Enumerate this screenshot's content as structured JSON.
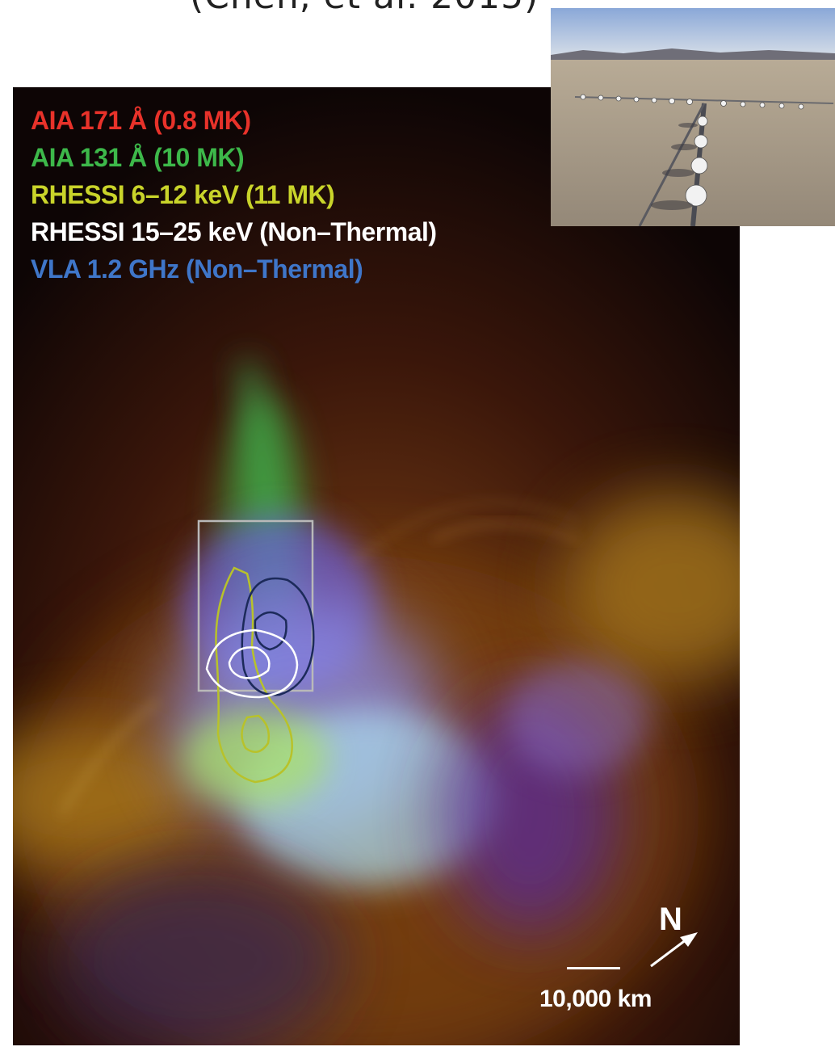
{
  "citation": "(Chen, et al. 2015)",
  "legend": [
    {
      "label": "AIA 171 Å (0.8 MK)",
      "color": "#e8322a"
    },
    {
      "label": "AIA 131 Å (10 MK)",
      "color": "#3db84a"
    },
    {
      "label": "RHESSI 6–12 keV (11 MK)",
      "color": "#c9d42a"
    },
    {
      "label": "RHESSI 15–25 keV (Non–Thermal)",
      "color": "#ffffff"
    },
    {
      "label": "VLA 1.2 GHz (Non–Thermal)",
      "color": "#3f76c9"
    }
  ],
  "compass": {
    "label": "N"
  },
  "scale": {
    "label": "10,000 km"
  },
  "colors": {
    "background": "#0d0505",
    "box": "#b9b9b9",
    "contour_white": "#ffffff",
    "contour_yellow": "#b8c22a",
    "contour_navy": "#1c2a5a"
  }
}
